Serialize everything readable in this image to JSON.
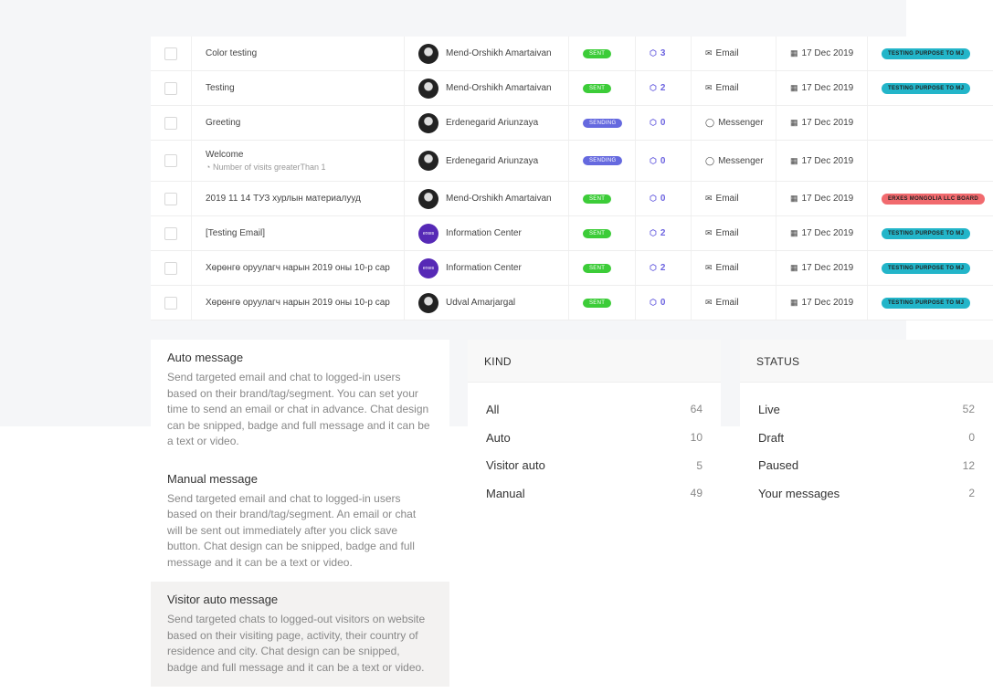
{
  "colors": {
    "sent": "#3ccc38",
    "sending": "#6569df",
    "tag_teal": "#23b5c9",
    "tag_red": "#f16a6e",
    "accent": "#6c63e0"
  },
  "rows": [
    {
      "title": "Color testing",
      "subtitle": "",
      "author": "Mend-Orshikh Amartaivan",
      "avatar": "photo",
      "status": "SENT",
      "count": "3",
      "kind": "Email",
      "kind_icon": "envelope-icon",
      "date": "17 Dec 2019",
      "tag": "TESTING PURPOSE TO MJ",
      "tag_color": "teal"
    },
    {
      "title": "Testing",
      "subtitle": "",
      "author": "Mend-Orshikh Amartaivan",
      "avatar": "photo",
      "status": "SENT",
      "count": "2",
      "kind": "Email",
      "kind_icon": "envelope-icon",
      "date": "17 Dec 2019",
      "tag": "TESTING PURPOSE TO MJ",
      "tag_color": "teal"
    },
    {
      "title": "Greeting",
      "subtitle": "",
      "author": "Erdenegarid Ariunzaya",
      "avatar": "photo",
      "status": "SENDING",
      "count": "0",
      "kind": "Messenger",
      "kind_icon": "chat-bubble-icon",
      "date": "17 Dec 2019",
      "tag": "",
      "tag_color": ""
    },
    {
      "title": "Welcome",
      "subtitle": "Number of visits greaterThan 1",
      "author": "Erdenegarid Ariunzaya",
      "avatar": "photo",
      "status": "SENDING",
      "count": "0",
      "kind": "Messenger",
      "kind_icon": "chat-bubble-icon",
      "date": "17 Dec 2019",
      "tag": "",
      "tag_color": ""
    },
    {
      "title": "2019 11 14 ТУЗ хурлын материалууд",
      "subtitle": "",
      "author": "Mend-Orshikh Amartaivan",
      "avatar": "photo",
      "status": "SENT",
      "count": "0",
      "kind": "Email",
      "kind_icon": "envelope-icon",
      "date": "17 Dec 2019",
      "tag": "ERXES MONGOLIA LLC BOARD",
      "tag_color": "red"
    },
    {
      "title": "[Testing Email]",
      "subtitle": "",
      "author": "Information Center",
      "avatar": "logo",
      "avatar_text": "erxes",
      "status": "SENT",
      "count": "2",
      "kind": "Email",
      "kind_icon": "envelope-icon",
      "date": "17 Dec 2019",
      "tag": "TESTING PURPOSE TO MJ",
      "tag_color": "teal"
    },
    {
      "title": "Хөрөнгө оруулагч нарын 2019 оны 10-р сар",
      "subtitle": "",
      "author": "Information Center",
      "avatar": "logo",
      "avatar_text": "erxes",
      "status": "SENT",
      "count": "2",
      "kind": "Email",
      "kind_icon": "envelope-icon",
      "date": "17 Dec 2019",
      "tag": "TESTING PURPOSE TO MJ",
      "tag_color": "teal"
    },
    {
      "title": "Хөрөнгө оруулагч нарын 2019 оны 10-р сар",
      "subtitle": "",
      "author": "Udval Amarjargal",
      "avatar": "photo",
      "status": "SENT",
      "count": "0",
      "kind": "Email",
      "kind_icon": "envelope-icon",
      "date": "17 Dec 2019",
      "tag": "TESTING PURPOSE TO MJ",
      "tag_color": "teal"
    }
  ],
  "message_types": [
    {
      "title": "Auto message",
      "description": "Send targeted email and chat to logged-in users based on their brand/tag/segment. You can set your time to send an email or chat in advance. Chat design can be snipped, badge and full message and it can be a text or video.",
      "active": false
    },
    {
      "title": "Manual message",
      "description": "Send targeted email and chat to logged-in users based on their brand/tag/segment. An email or chat will be sent out immediately after you click save button. Chat design can be snipped, badge and full message and it can be a text or video.",
      "active": false
    },
    {
      "title": "Visitor auto message",
      "description": "Send targeted chats to logged-out visitors on website based on their visiting page, activity, their country of residence and city. Chat design can be snipped, badge and full message and it can be a text or video.",
      "active": true
    }
  ],
  "kind_filter": {
    "title": "KIND",
    "items": [
      {
        "label": "All",
        "count": "64"
      },
      {
        "label": "Auto",
        "count": "10"
      },
      {
        "label": "Visitor auto",
        "count": "5"
      },
      {
        "label": "Manual",
        "count": "49"
      }
    ]
  },
  "status_filter": {
    "title": "STATUS",
    "items": [
      {
        "label": "Live",
        "count": "52"
      },
      {
        "label": "Draft",
        "count": "0"
      },
      {
        "label": "Paused",
        "count": "12"
      },
      {
        "label": "Your messages",
        "count": "2"
      }
    ]
  }
}
